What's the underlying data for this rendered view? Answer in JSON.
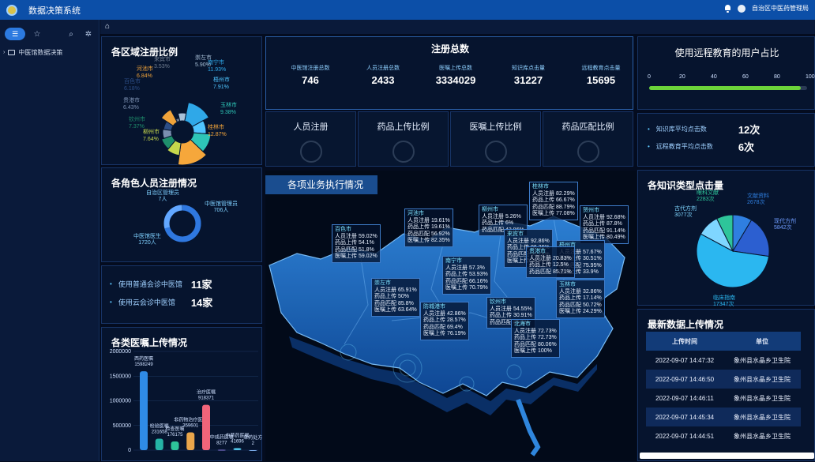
{
  "app": {
    "title": "数据决策系统",
    "user": "自治区中医药管理局"
  },
  "sidebar": {
    "tree_item": "中医馆数据决策"
  },
  "panels": {
    "region": {
      "title": "各区域注册比例",
      "slices": [
        {
          "name": "南宁市",
          "pct": "11.93%",
          "color": "#2fa8e8"
        },
        {
          "name": "梧州市",
          "pct": "7.91%",
          "color": "#4fc5ff"
        },
        {
          "name": "玉林市",
          "pct": "9.38%",
          "color": "#2ec6b7"
        },
        {
          "name": "桂林市",
          "pct": "12.87%",
          "color": "#f6a73b"
        },
        {
          "name": "柳州市",
          "pct": "7.64%",
          "color": "#c7d84c"
        },
        {
          "name": "钦州市",
          "pct": "7.37%",
          "color": "#1f8f6c"
        },
        {
          "name": "贵港市",
          "pct": "6.43%",
          "color": "#7b8fb0"
        },
        {
          "name": "百色市",
          "pct": "6.18%",
          "color": "#2c4d85"
        },
        {
          "name": "河池市",
          "pct": "6.84%",
          "color": "#f0a33a"
        },
        {
          "name": "来宾市",
          "pct": "3.53%",
          "color": "#6f7c8f"
        },
        {
          "name": "崇左市",
          "pct": "5.90%",
          "color": "#a9c1d8"
        }
      ]
    },
    "roles": {
      "title": "各角色人员注册情况",
      "items": [
        {
          "name": "自治区管理员",
          "count": "7人",
          "pct": 0.5
        },
        {
          "name": "中医馆管理员",
          "count": "706人",
          "pct": 29
        },
        {
          "name": "中医馆医生",
          "count": "1720人",
          "pct": 70.5
        }
      ]
    },
    "consult": {
      "rows": [
        {
          "label": "使用普通会诊中医馆",
          "value": "11家"
        },
        {
          "label": "使用云会诊中医馆",
          "value": "14家"
        }
      ]
    },
    "orders": {
      "title": "各类医嘱上传情况"
    },
    "reg_total": {
      "title": "注册总数",
      "stats": [
        {
          "label": "中医馆注册总数",
          "value": "746"
        },
        {
          "label": "人员注册总数",
          "value": "2433"
        },
        {
          "label": "医嘱上传总数",
          "value": "3334029"
        },
        {
          "label": "知识库点击量",
          "value": "31227"
        },
        {
          "label": "远程教育点击量",
          "value": "15695"
        }
      ]
    },
    "gauges": [
      "人员注册",
      "药品上传比例",
      "医嘱上传比例",
      "药品匹配比例"
    ],
    "map": {
      "title": "各项业务执行情况"
    },
    "remote": {
      "title": "使用远程教育的用户占比",
      "value_pct": 96,
      "ticks": [
        "0",
        "20",
        "40",
        "60",
        "80",
        "100"
      ]
    },
    "clicks": {
      "rows": [
        {
          "label": "知识库平均点击数",
          "value": "12次"
        },
        {
          "label": "远程教育平均点击数",
          "value": "6次"
        }
      ]
    },
    "kb": {
      "title": "各知识类型点击量",
      "slices": [
        {
          "name": "文献资料",
          "value": "2678次",
          "color": "#2f7fe0"
        },
        {
          "name": "现代方剂",
          "value": "5842次",
          "color": "#2c5fd0"
        },
        {
          "name": "临床指南",
          "value": "17347次",
          "color": "#2bb7f0"
        },
        {
          "name": "古代方剂",
          "value": "3077次",
          "color": "#7fd6ff"
        },
        {
          "name": "眼科文献",
          "value": "2283次",
          "color": "#2ec59a"
        }
      ]
    },
    "latest": {
      "title": "最新数据上传情况",
      "headers": [
        "上传时间",
        "单位"
      ],
      "rows": [
        [
          "2022-09-07 14:47:32",
          "象州县水晶乡卫生院"
        ],
        [
          "2022-09-07 14:46:50",
          "象州县水晶乡卫生院"
        ],
        [
          "2022-09-07 14:46:11",
          "象州县水晶乡卫生院"
        ],
        [
          "2022-09-07 14:45:34",
          "象州县水晶乡卫生院"
        ],
        [
          "2022-09-07 14:44:51",
          "象州县水晶乡卫生院"
        ]
      ]
    }
  },
  "chart_data": {
    "type": "bar",
    "title": "各类医嘱上传情况",
    "ylim": [
      0,
      2000000
    ],
    "yticks": [
      "2000000",
      "1500000",
      "1000000",
      "500000",
      "0"
    ],
    "categories": [
      "西药医嘱",
      "检验医嘱",
      "检查医嘱",
      "非药物治疗医嘱",
      "治疗医嘱",
      "中成药医嘱",
      "中草药医嘱",
      "草药处方"
    ],
    "values": [
      1598249,
      231658,
      176175,
      359601,
      918371,
      8277,
      41696,
      2
    ],
    "colors": [
      "#2f8be6",
      "#25b3a6",
      "#2ec39a",
      "#e9a54b",
      "#f0647a",
      "#8f7ee6",
      "#51c4e8",
      "#7fb1f0"
    ]
  },
  "map_labels": [
    {
      "city": "百色市",
      "lines": [
        "人员注册 59.02%",
        "药品上传 54.1%",
        "药品匹配 51.8%",
        "医嘱上传 59.02%"
      ]
    },
    {
      "city": "河池市",
      "lines": [
        "人员注册 19.61%",
        "药品上传 19.61%",
        "药品匹配 56.92%",
        "医嘱上传 82.35%"
      ]
    },
    {
      "city": "柳州市",
      "lines": [
        "人员注册 5.26%",
        "药品上传 6%",
        "药品匹配 43.86%"
      ]
    },
    {
      "city": "桂林市",
      "lines": [
        "人员注册 82.29%",
        "药品上传 66.67%",
        "药品匹配 88.79%",
        "医嘱上传 77.08%"
      ]
    },
    {
      "city": "贺州市",
      "lines": [
        "人员注册 92.68%",
        "药品上传 87.8%",
        "药品匹配 91.14%",
        "医嘱上传 80.49%"
      ]
    },
    {
      "city": "来宾市",
      "lines": [
        "人员注册 92.86%",
        "药品上传 86.36%",
        "药品匹配 95.78%",
        "医嘱上传 95.24%"
      ]
    },
    {
      "city": "南宁市",
      "lines": [
        "人员注册 57.3%",
        "药品上传 53.93%",
        "药品匹配 66.16%",
        "医嘱上传 70.79%"
      ]
    },
    {
      "city": "崇左市",
      "lines": [
        "人员注册 65.91%",
        "药品上传 50%",
        "药品匹配 85.8%",
        "医嘱上传 63.64%"
      ]
    },
    {
      "city": "梧州市",
      "lines": [
        "人员注册 57.67%",
        "药品上传 30.51%",
        "药品匹配 75.95%",
        "医嘱上传 33.9%"
      ]
    },
    {
      "city": "贵港市",
      "lines": [
        "人员注册 20.83%",
        "药品上传 12.5%",
        "药品匹配 85.71%"
      ]
    },
    {
      "city": "玉林市",
      "lines": [
        "人员注册 32.86%",
        "药品上传 17.14%",
        "药品匹配 50.72%",
        "医嘱上传 24.29%"
      ]
    },
    {
      "city": "防城港市",
      "lines": [
        "人员注册 42.86%",
        "药品上传 28.57%",
        "药品匹配 69.4%",
        "医嘱上传 76.19%"
      ]
    },
    {
      "city": "钦州市",
      "lines": [
        "人员注册 54.55%",
        "药品上传 30.91%",
        "药品匹配 85.2%"
      ]
    },
    {
      "city": "北海市",
      "lines": [
        "人员注册 72.73%",
        "药品上传 72.73%",
        "药品匹配 80.06%",
        "医嘱上传 100%"
      ]
    }
  ]
}
